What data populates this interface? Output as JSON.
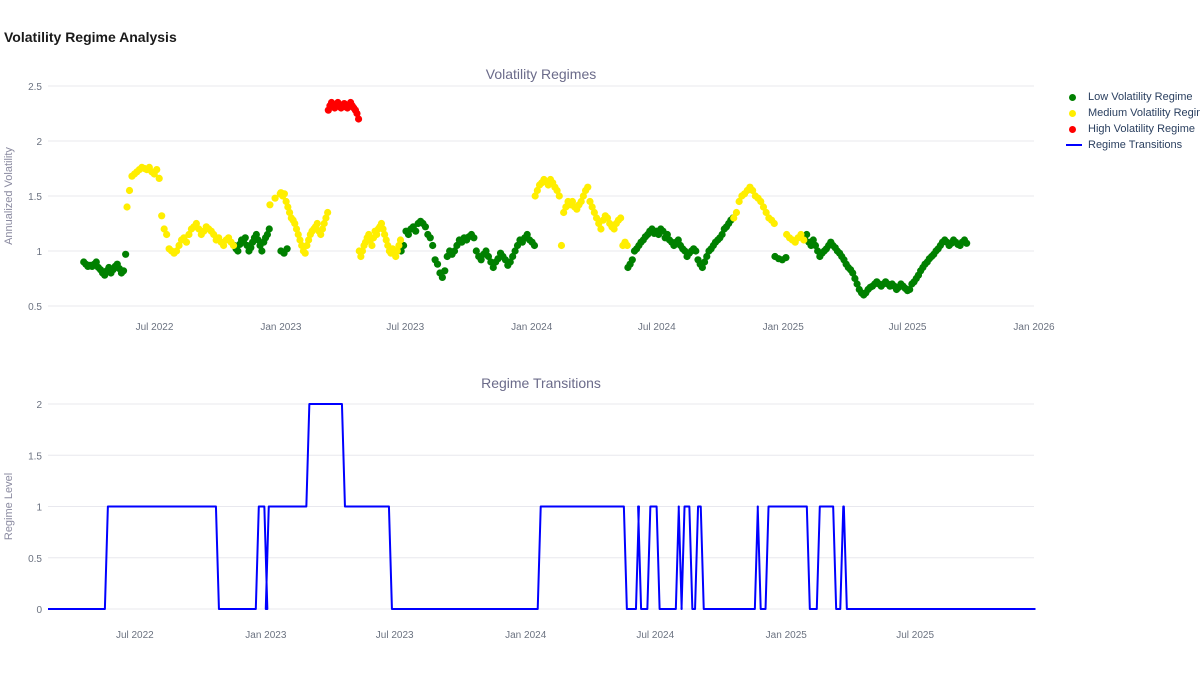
{
  "title": "Volatility Regime Analysis",
  "colors": {
    "low": "#008000",
    "medium": "#ffee00",
    "high": "#ff0000",
    "transition": "#0000ff",
    "grid": "#e8e8ee"
  },
  "chart_data": [
    {
      "type": "scatter",
      "title": "Volatility Regimes",
      "ylabel": "Annualized Volatility",
      "xlabel": "",
      "xlim": [
        "2022-01-27",
        "2026-01-01"
      ],
      "ylim": [
        0.5,
        2.5
      ],
      "yticks": [
        0.5,
        1,
        1.5,
        2,
        2.5
      ],
      "xticks": [
        {
          "date": "2022-07-01",
          "label": "Jul 2022"
        },
        {
          "date": "2023-01-01",
          "label": "Jan 2023"
        },
        {
          "date": "2023-07-01",
          "label": "Jul 2023"
        },
        {
          "date": "2024-01-01",
          "label": "Jan 2024"
        },
        {
          "date": "2024-07-01",
          "label": "Jul 2024"
        },
        {
          "date": "2025-01-01",
          "label": "Jan 2025"
        },
        {
          "date": "2025-07-01",
          "label": "Jul 2025"
        },
        {
          "date": "2026-01-01",
          "label": "Jan 2026"
        }
      ],
      "legend_position": "top-right",
      "series": [
        {
          "name": "Low Volatility Regime",
          "color_key": "low",
          "segments": [
            {
              "start": "2022-03-20",
              "end": "2022-05-20",
              "values": [
                0.9,
                0.88,
                0.86,
                0.87,
                0.86,
                0.88,
                0.9,
                0.85,
                0.83,
                0.8,
                0.78,
                0.82,
                0.85,
                0.8,
                0.83,
                0.86,
                0.88,
                0.84,
                0.8,
                0.82,
                0.97
              ]
            },
            {
              "start": "2022-10-25",
              "end": "2022-12-15",
              "values": [
                1.05,
                1.02,
                1.0,
                1.06,
                1.1,
                1.08,
                1.12,
                1.05,
                1.0,
                1.03,
                1.08,
                1.12,
                1.15,
                1.1,
                1.05,
                1.0,
                1.08,
                1.12,
                1.15,
                1.2
              ]
            },
            {
              "start": "2023-01-01",
              "end": "2023-01-10",
              "values": [
                1.0,
                0.98,
                1.02
              ]
            },
            {
              "start": "2023-06-25",
              "end": "2024-01-05",
              "values": [
                1.0,
                1.05,
                1.18,
                1.15,
                1.2,
                1.22,
                1.18,
                1.25,
                1.27,
                1.25,
                1.22,
                1.15,
                1.12,
                1.05,
                0.92,
                0.88,
                0.8,
                0.76,
                0.82,
                0.95,
                1.0,
                0.97,
                1.0,
                1.05,
                1.1,
                1.08,
                1.12,
                1.1,
                1.13,
                1.15,
                1.12,
                1.0,
                0.95,
                0.92,
                0.97,
                1.0,
                0.95,
                0.9,
                0.85,
                0.9,
                0.93,
                0.98,
                0.95,
                0.92,
                0.87,
                0.9,
                0.95,
                1.0,
                1.05,
                1.1,
                1.08,
                1.12,
                1.15,
                1.1,
                1.08,
                1.05
              ]
            },
            {
              "start": "2024-05-20",
              "end": "2024-10-20",
              "values": [
                0.85,
                0.88,
                0.92,
                1.0,
                1.02,
                1.05,
                1.08,
                1.1,
                1.13,
                1.15,
                1.18,
                1.2,
                1.16,
                1.18,
                1.15,
                1.2,
                1.18,
                1.12,
                1.15,
                1.1,
                1.08,
                1.05,
                1.08,
                1.1,
                1.05,
                1.02,
                1.0,
                0.95,
                0.98,
                1.0,
                1.02,
                1.0,
                0.92,
                0.88,
                0.85,
                0.9,
                0.95,
                1.0,
                1.02,
                1.05,
                1.08,
                1.1,
                1.12,
                1.15,
                1.2,
                1.22,
                1.25,
                1.28,
                1.3
              ]
            },
            {
              "start": "2024-12-20",
              "end": "2025-01-05",
              "values": [
                0.95,
                0.93,
                0.92,
                0.94
              ]
            },
            {
              "start": "2025-02-01",
              "end": "2025-09-25",
              "values": [
                1.12,
                1.15,
                1.08,
                1.05,
                1.1,
                1.05,
                1.0,
                0.95,
                0.98,
                1.0,
                1.02,
                1.05,
                1.08,
                1.05,
                1.03,
                1.0,
                0.98,
                0.95,
                0.92,
                0.88,
                0.85,
                0.83,
                0.8,
                0.75,
                0.7,
                0.65,
                0.62,
                0.6,
                0.62,
                0.65,
                0.67,
                0.68,
                0.7,
                0.72,
                0.7,
                0.68,
                0.7,
                0.72,
                0.7,
                0.68,
                0.7,
                0.68,
                0.65,
                0.67,
                0.7,
                0.68,
                0.66,
                0.64,
                0.65,
                0.7,
                0.72,
                0.75,
                0.78,
                0.82,
                0.85,
                0.88,
                0.9,
                0.93,
                0.95,
                0.97,
                1.0,
                1.02,
                1.05,
                1.08,
                1.1,
                1.08,
                1.05,
                1.07,
                1.1,
                1.08,
                1.06,
                1.05,
                1.08,
                1.1,
                1.07
              ]
            }
          ]
        },
        {
          "name": "Medium Volatility Regime",
          "color_key": "medium",
          "segments": [
            {
              "start": "2022-05-22",
              "end": "2022-10-24",
              "values": [
                1.4,
                1.55,
                1.68,
                1.7,
                1.72,
                1.74,
                1.76,
                1.75,
                1.74,
                1.76,
                1.72,
                1.7,
                1.74,
                1.66,
                1.32,
                1.2,
                1.15,
                1.02,
                1.0,
                0.98,
                1.0,
                1.05,
                1.1,
                1.12,
                1.08,
                1.15,
                1.2,
                1.22,
                1.25,
                1.2,
                1.15,
                1.18,
                1.22,
                1.2,
                1.18,
                1.15,
                1.1,
                1.12,
                1.08,
                1.05,
                1.1,
                1.12,
                1.08,
                1.05
              ]
            },
            {
              "start": "2022-12-16",
              "end": "2022-12-31",
              "values": [
                1.42,
                1.48,
                1.52
              ]
            },
            {
              "start": "2023-01-01",
              "end": "2023-03-10",
              "values": [
                1.53,
                1.5,
                1.52,
                1.45,
                1.4,
                1.35,
                1.3,
                1.28,
                1.25,
                1.2,
                1.15,
                1.1,
                1.05,
                1.0,
                0.98,
                1.05,
                1.1,
                1.15,
                1.18,
                1.2,
                1.22,
                1.25,
                1.18,
                1.15,
                1.2,
                1.25,
                1.3,
                1.35
              ]
            },
            {
              "start": "2023-04-25",
              "end": "2023-06-24",
              "values": [
                1.0,
                0.95,
                1.0,
                1.05,
                1.08,
                1.12,
                1.15,
                1.1,
                1.05,
                1.12,
                1.18,
                1.15,
                1.2,
                1.22,
                1.25,
                1.2,
                1.15,
                1.1,
                1.05,
                1.0,
                0.98,
                1.02,
                0.98,
                0.95,
                1.0,
                1.05,
                1.1
              ]
            },
            {
              "start": "2024-01-06",
              "end": "2024-05-19",
              "values": [
                1.5,
                1.55,
                1.6,
                1.62,
                1.65,
                1.63,
                1.6,
                1.65,
                1.62,
                1.58,
                1.55,
                1.5,
                1.05,
                1.35,
                1.4,
                1.45,
                1.42,
                1.45,
                1.4,
                1.38,
                1.42,
                1.45,
                1.5,
                1.55,
                1.58,
                1.45,
                1.4,
                1.35,
                1.3,
                1.25,
                1.2,
                1.28,
                1.32,
                1.3,
                1.25,
                1.22,
                1.2,
                1.25,
                1.28,
                1.3,
                1.05,
                1.08,
                1.05
              ]
            },
            {
              "start": "2024-10-21",
              "end": "2024-12-19",
              "values": [
                1.3,
                1.35,
                1.45,
                1.5,
                1.52,
                1.55,
                1.58,
                1.55,
                1.5,
                1.48,
                1.45,
                1.4,
                1.35,
                1.3,
                1.28,
                1.25
              ]
            },
            {
              "start": "2025-01-06",
              "end": "2025-01-31",
              "values": [
                1.15,
                1.12,
                1.1,
                1.08,
                1.12,
                1.15,
                1.1
              ]
            }
          ]
        },
        {
          "name": "High Volatility Regime",
          "color_key": "high",
          "segments": [
            {
              "start": "2023-03-11",
              "end": "2023-04-24",
              "values": [
                2.28,
                2.32,
                2.35,
                2.33,
                2.3,
                2.32,
                2.35,
                2.33,
                2.3,
                2.32,
                2.34,
                2.31,
                2.3,
                2.33,
                2.35,
                2.32,
                2.3,
                2.28,
                2.25,
                2.2
              ]
            }
          ]
        }
      ]
    },
    {
      "type": "line",
      "title": "Regime Transitions",
      "ylabel": "Regime Level",
      "xlabel": "",
      "xlim": [
        "2022-03-01",
        "2025-12-15"
      ],
      "ylim": [
        0,
        2
      ],
      "yticks": [
        0,
        0.5,
        1,
        1.5,
        2
      ],
      "xticks": [
        {
          "date": "2022-07-01",
          "label": "Jul 2022"
        },
        {
          "date": "2023-01-01",
          "label": "Jan 2023"
        },
        {
          "date": "2023-07-01",
          "label": "Jul 2023"
        },
        {
          "date": "2024-01-01",
          "label": "Jan 2024"
        },
        {
          "date": "2024-07-01",
          "label": "Jul 2024"
        },
        {
          "date": "2025-01-01",
          "label": "Jan 2025"
        },
        {
          "date": "2025-07-01",
          "label": "Jul 2025"
        }
      ],
      "series": [
        {
          "name": "Regime Transitions",
          "color_key": "transition",
          "steps": [
            {
              "date": "2022-03-01",
              "value": 0
            },
            {
              "date": "2022-05-22",
              "value": 1
            },
            {
              "date": "2022-10-25",
              "value": 0
            },
            {
              "date": "2022-12-20",
              "value": 1
            },
            {
              "date": "2023-01-01",
              "value": 0
            },
            {
              "date": "2023-01-03",
              "value": 1
            },
            {
              "date": "2023-03-01",
              "value": 2
            },
            {
              "date": "2023-04-20",
              "value": 1
            },
            {
              "date": "2023-06-25",
              "value": 0
            },
            {
              "date": "2024-01-20",
              "value": 1
            },
            {
              "date": "2024-05-20",
              "value": 0
            },
            {
              "date": "2024-06-06",
              "value": 1
            },
            {
              "date": "2024-06-09",
              "value": 0
            },
            {
              "date": "2024-06-22",
              "value": 1
            },
            {
              "date": "2024-07-05",
              "value": 0
            },
            {
              "date": "2024-08-01",
              "value": 1
            },
            {
              "date": "2024-08-05",
              "value": 0
            },
            {
              "date": "2024-08-09",
              "value": 1
            },
            {
              "date": "2024-08-20",
              "value": 0
            },
            {
              "date": "2024-08-28",
              "value": 1
            },
            {
              "date": "2024-09-05",
              "value": 0
            },
            {
              "date": "2024-11-20",
              "value": 1
            },
            {
              "date": "2024-11-24",
              "value": 0
            },
            {
              "date": "2024-12-05",
              "value": 1
            },
            {
              "date": "2025-02-01",
              "value": 0
            },
            {
              "date": "2025-02-15",
              "value": 1
            },
            {
              "date": "2025-03-10",
              "value": 0
            },
            {
              "date": "2025-03-20",
              "value": 1
            },
            {
              "date": "2025-03-25",
              "value": 0
            },
            {
              "date": "2025-12-15",
              "value": 0
            }
          ]
        }
      ]
    }
  ]
}
